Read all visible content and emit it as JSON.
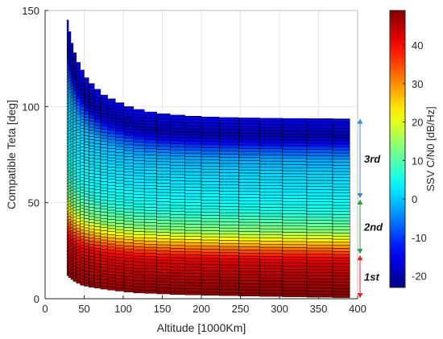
{
  "chart_data": {
    "type": "heatmap",
    "xlabel": "Altitude [1000Km]",
    "ylabel": "Compatible Teta [deg]",
    "xlim": [
      0,
      400
    ],
    "ylim": [
      0,
      150
    ],
    "xticks": [
      0,
      50,
      100,
      150,
      200,
      250,
      300,
      350,
      400
    ],
    "yticks": [
      0,
      50,
      100,
      150
    ],
    "grid": true,
    "colorbar": {
      "label": "SSV C/N0 [dB/Hz]",
      "range": [
        -23,
        49
      ],
      "ticks": [
        -20,
        -10,
        0,
        10,
        20,
        30,
        40
      ],
      "colormap": "jet"
    },
    "columns_altitude": [
      28,
      30,
      33,
      36,
      40,
      45,
      50,
      56,
      63,
      71,
      80,
      90,
      101,
      113,
      127,
      143,
      160,
      179,
      200,
      223,
      248,
      275,
      304,
      335,
      368,
      390
    ],
    "columns_max_teta": [
      145,
      139,
      133,
      128,
      123,
      119,
      115,
      112,
      109,
      106,
      104,
      102,
      100,
      98.5,
      97.2,
      96.3,
      95.6,
      95,
      94.6,
      94.3,
      94.1,
      93.9,
      93.8,
      93.7,
      93.6
    ],
    "columns_min_teta": [
      12,
      11,
      10,
      9,
      8,
      7,
      6.5,
      6,
      5.5,
      5,
      4.5,
      4,
      3.5,
      3,
      2.8,
      2.5,
      2.2,
      2,
      1.8,
      1.6,
      1.4,
      1.2,
      1,
      0.8,
      0.6
    ],
    "cn0_profile": {
      "teta": [
        0,
        10,
        20,
        25,
        30,
        35,
        45,
        55,
        65,
        72,
        78,
        82,
        85,
        88,
        92,
        95,
        105,
        120,
        150
      ],
      "cn0": [
        49,
        46,
        42,
        34,
        24,
        14,
        6,
        3,
        1,
        -2,
        -9,
        -16,
        -20,
        -18,
        -16,
        -11,
        -8,
        -6,
        -5
      ]
    },
    "ridge_offset_deg": 9,
    "annotations": [
      {
        "label": "1st",
        "teta_range": [
          0,
          23
        ],
        "color": "#e02020"
      },
      {
        "label": "2nd",
        "teta_range": [
          23,
          52
        ],
        "color": "#1f9f3f"
      },
      {
        "label": "3rd",
        "teta_range": [
          52,
          94
        ],
        "color": "#3a88c8"
      }
    ]
  }
}
